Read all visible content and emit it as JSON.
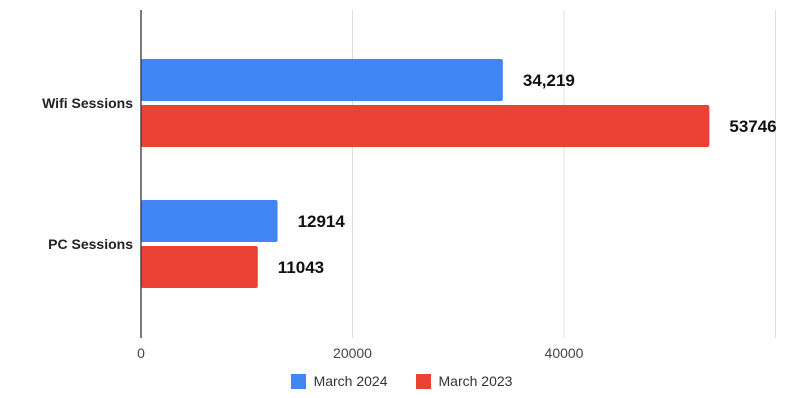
{
  "chart_data": {
    "type": "bar",
    "orientation": "horizontal",
    "categories": [
      "Wifi Sessions",
      "PC Sessions"
    ],
    "series": [
      {
        "name": "March 2024",
        "color": "#4285f4",
        "values": [
          34219,
          12914
        ],
        "labels": [
          "34,219",
          "12914"
        ]
      },
      {
        "name": "March 2023",
        "color": "#ea4335",
        "values": [
          53746,
          11043
        ],
        "labels": [
          "53746",
          "11043"
        ]
      }
    ],
    "xlim": [
      0,
      60000
    ],
    "xticks": [
      0,
      20000,
      40000
    ],
    "xtick_labels": [
      "0",
      "20000",
      "40000"
    ],
    "grid": true,
    "legend_position": "bottom"
  }
}
